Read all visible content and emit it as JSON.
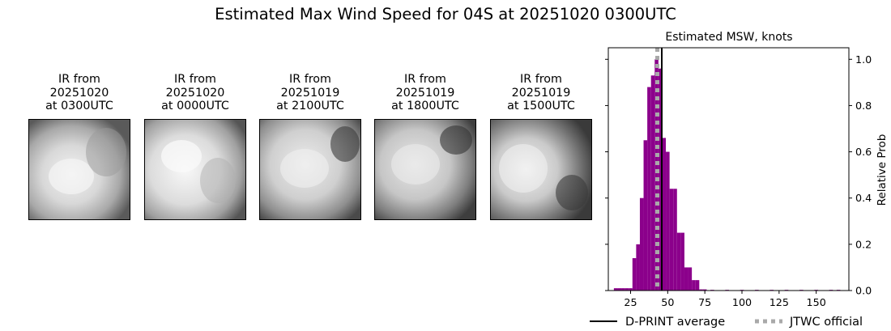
{
  "suptitle": "Estimated Max Wind Speed for 04S at 20251020 0300UTC",
  "ir_panels": [
    {
      "line1": "IR from",
      "line2": "20251020",
      "line3": "at 0300UTC"
    },
    {
      "line1": "IR from",
      "line2": "20251020",
      "line3": "at 0000UTC"
    },
    {
      "line1": "IR from",
      "line2": "20251019",
      "line3": "at 2100UTC"
    },
    {
      "line1": "IR from",
      "line2": "20251019",
      "line3": "at 1800UTC"
    },
    {
      "line1": "IR from",
      "line2": "20251019",
      "line3": "at 1500UTC"
    }
  ],
  "chart_data": {
    "type": "bar",
    "title": "Estimated MSW, knots",
    "xlabel": "",
    "ylabel": "Relative Prob",
    "xlim": [
      10,
      172
    ],
    "ylim": [
      0,
      1.05
    ],
    "xticks": [
      25,
      50,
      75,
      100,
      125,
      150
    ],
    "yticks": [
      0.0,
      0.2,
      0.4,
      0.6,
      0.8,
      1.0
    ],
    "bin_width": 2.5,
    "bars": [
      {
        "x": 15,
        "value": 0.01
      },
      {
        "x": 17.5,
        "value": 0.01
      },
      {
        "x": 20,
        "value": 0.01
      },
      {
        "x": 22.5,
        "value": 0.01
      },
      {
        "x": 25,
        "value": 0.01
      },
      {
        "x": 27.5,
        "value": 0.14
      },
      {
        "x": 30,
        "value": 0.2
      },
      {
        "x": 32.5,
        "value": 0.4
      },
      {
        "x": 35,
        "value": 0.65
      },
      {
        "x": 37.5,
        "value": 0.88
      },
      {
        "x": 40,
        "value": 0.93
      },
      {
        "x": 42.5,
        "value": 1.0
      },
      {
        "x": 45,
        "value": 0.96
      },
      {
        "x": 47.5,
        "value": 0.66
      },
      {
        "x": 50,
        "value": 0.6
      },
      {
        "x": 52.5,
        "value": 0.44
      },
      {
        "x": 55,
        "value": 0.44
      },
      {
        "x": 57.5,
        "value": 0.25
      },
      {
        "x": 60,
        "value": 0.25
      },
      {
        "x": 62.5,
        "value": 0.1
      },
      {
        "x": 65,
        "value": 0.1
      },
      {
        "x": 67.5,
        "value": 0.045
      },
      {
        "x": 70,
        "value": 0.045
      },
      {
        "x": 72.5,
        "value": 0.005
      },
      {
        "x": 75,
        "value": 0.005
      },
      {
        "x": 80,
        "value": 0.003
      },
      {
        "x": 90,
        "value": 0.003
      },
      {
        "x": 100,
        "value": 0.003
      },
      {
        "x": 110,
        "value": 0.003
      },
      {
        "x": 120,
        "value": 0.003
      },
      {
        "x": 130,
        "value": 0.003
      },
      {
        "x": 140,
        "value": 0.003
      },
      {
        "x": 150,
        "value": 0.003
      },
      {
        "x": 160,
        "value": 0.003
      },
      {
        "x": 165,
        "value": 0.003
      }
    ],
    "bar_color": "#8b008b",
    "vlines": [
      {
        "name": "D-PRINT average",
        "x": 46,
        "color": "#000000",
        "style": "solid"
      },
      {
        "name": "JTWC official",
        "x": 43,
        "color": "#a9a9a9",
        "style": "dotted"
      }
    ],
    "legend": [
      "D-PRINT average",
      "JTWC official"
    ],
    "legend_placement": "bottom"
  }
}
